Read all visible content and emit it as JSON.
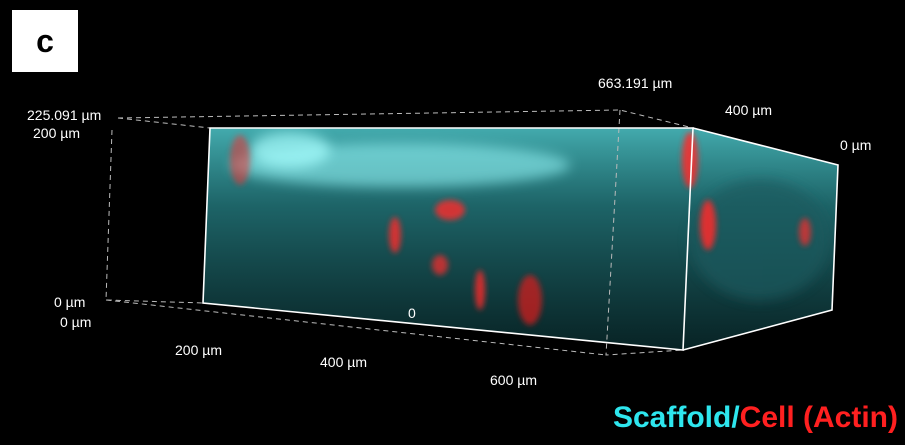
{
  "panel_label": "c",
  "axis_labels": [
    "663.191 µm",
    "400 µm",
    "0 µm",
    "225.091 µm",
    "200 µm",
    "0 µm",
    "0 µm",
    "200 µm",
    "400 µm",
    "600 µm",
    "0"
  ],
  "legend": {
    "scaffold": "Scaffold/",
    "cell": "Cell (Actin)"
  }
}
